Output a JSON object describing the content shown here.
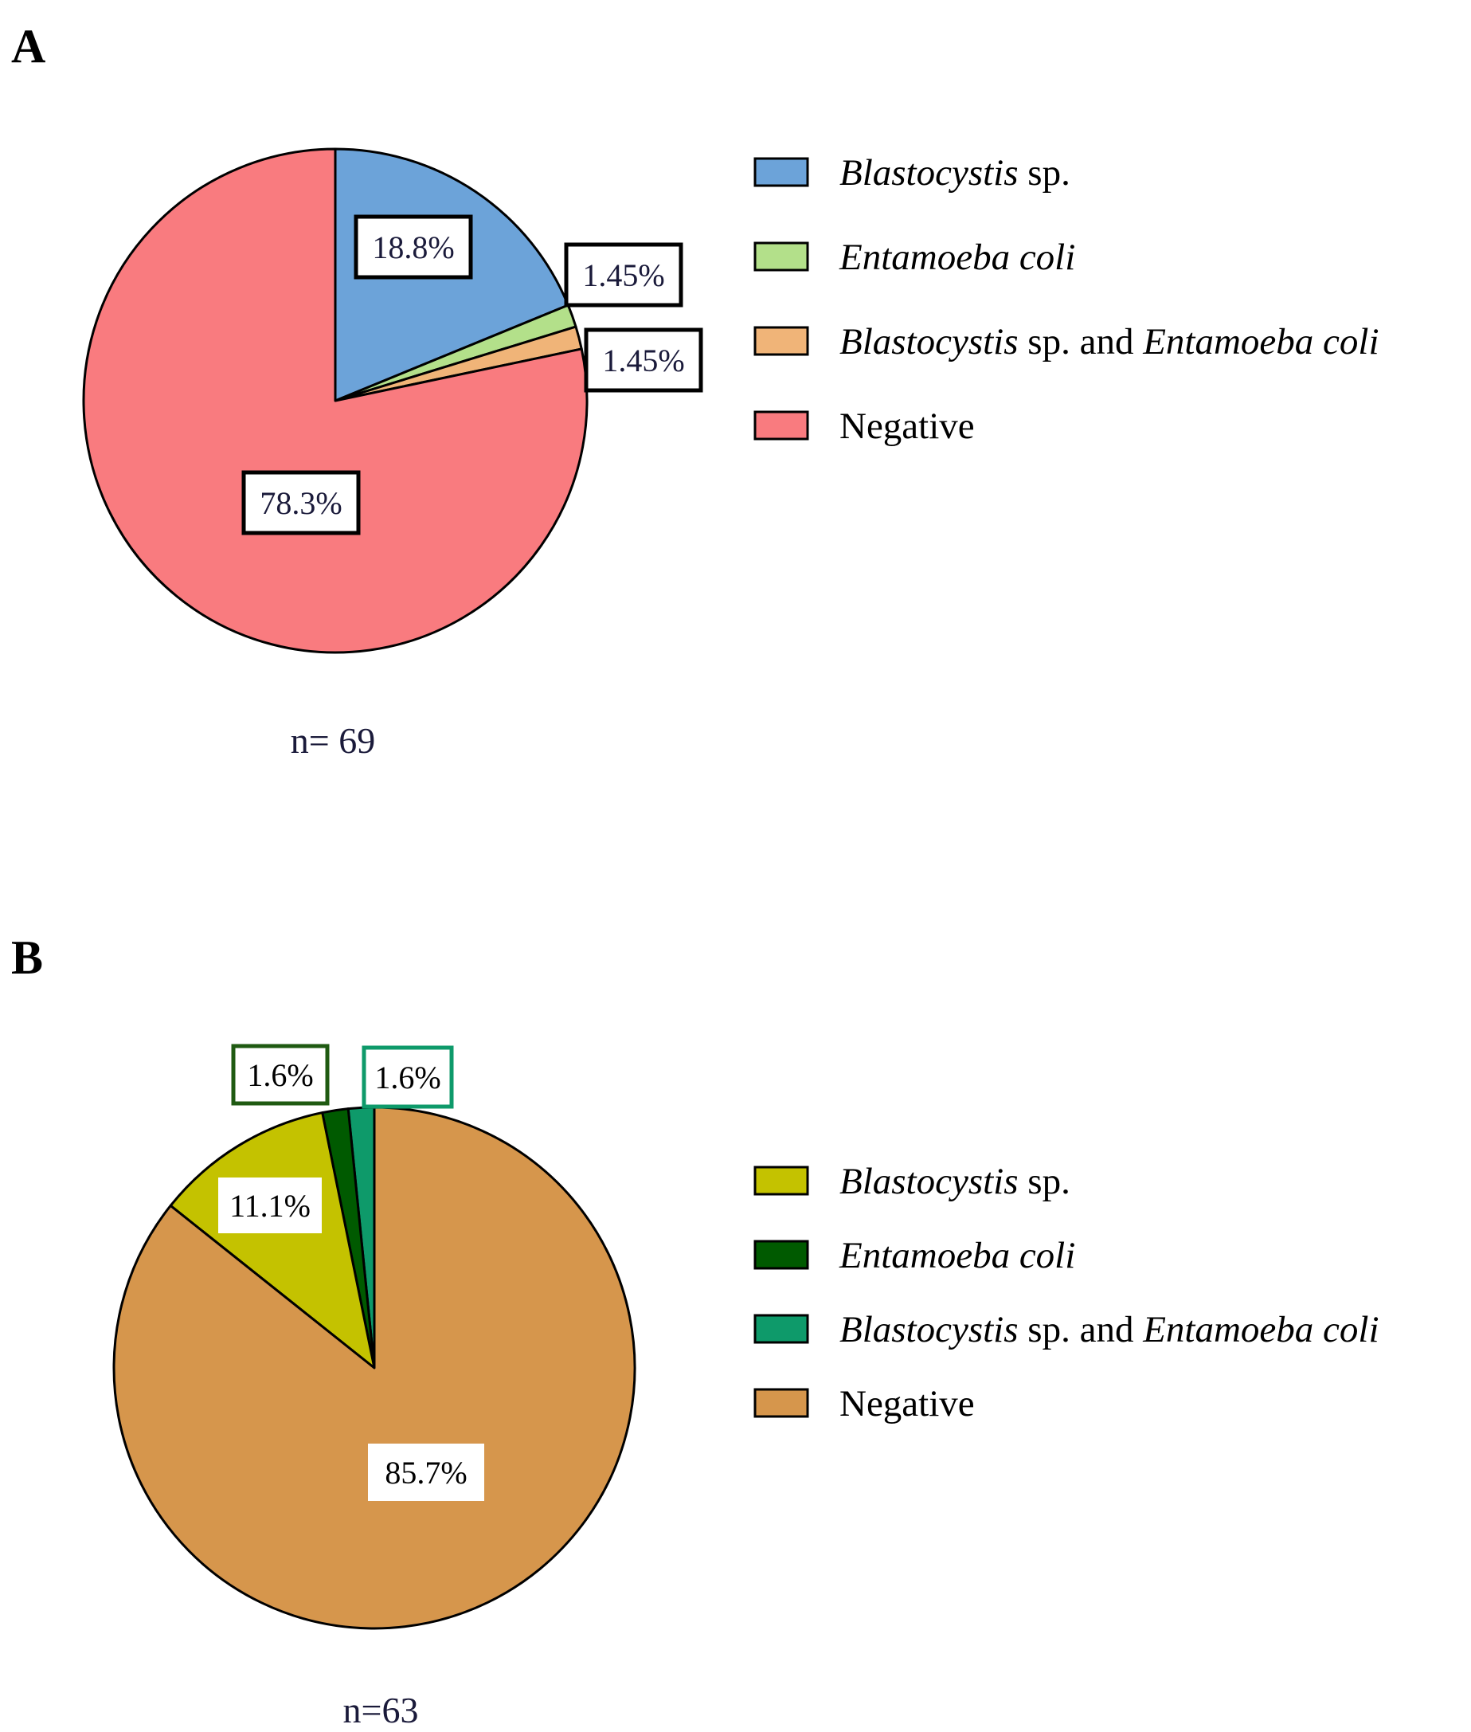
{
  "chart_data": [
    {
      "type": "pie",
      "panel": "A",
      "n_label": "n= 69",
      "start": "12 o'clock",
      "direction": "clockwise",
      "series": [
        {
          "name": "Blastocystis sp.",
          "value": 18.8,
          "label": "18.8%",
          "color": "#6ca3d9",
          "label_border": "#000000",
          "label_text": "#1a1a3a"
        },
        {
          "name": "Entamoeba coli",
          "value": 1.45,
          "label": "1.45%",
          "color": "#b3e08a",
          "label_border": "#000000",
          "label_text": "#1a1a3a"
        },
        {
          "name": "Blastocystis sp. and Entamoeba coli",
          "value": 1.45,
          "label": "1.45%",
          "color": "#f0b478",
          "label_border": "#000000",
          "label_text": "#1a1a3a"
        },
        {
          "name": "Negative",
          "value": 78.3,
          "label": "78.3%",
          "color": "#f97b7f",
          "label_border": "#000000",
          "label_text": "#1a1a3a"
        }
      ],
      "legend": [
        {
          "parts": [
            {
              "text": "Blastocystis",
              "italic": true
            },
            {
              "text": " sp.",
              "italic": false
            }
          ],
          "color": "#6ca3d9"
        },
        {
          "parts": [
            {
              "text": "Entamoeba coli",
              "italic": true
            }
          ],
          "color": "#b3e08a"
        },
        {
          "parts": [
            {
              "text": "Blastocystis",
              "italic": true
            },
            {
              "text": " sp. and ",
              "italic": false
            },
            {
              "text": "Entamoeba coli",
              "italic": true
            }
          ],
          "color": "#f0b478"
        },
        {
          "parts": [
            {
              "text": "Negative",
              "italic": false
            }
          ],
          "color": "#f97b7f"
        }
      ]
    },
    {
      "type": "pie",
      "panel": "B",
      "n_label": "n=63",
      "start": "12 o'clock",
      "direction": "counter-clockwise",
      "series": [
        {
          "name": "Blastocystis sp. and Entamoeba coli",
          "value": 1.6,
          "label": "1.6%",
          "color": "#0e9a6a",
          "label_border": "#0e9a6a",
          "label_text": "#000000"
        },
        {
          "name": "Entamoeba coli",
          "value": 1.6,
          "label": "1.6%",
          "color": "#005a00",
          "label_border": "#1f5a12",
          "label_text": "#000000"
        },
        {
          "name": "Blastocystis sp.",
          "value": 11.1,
          "label": "11.1%",
          "color": "#c4c200",
          "label_border": "none",
          "label_text": "#000000"
        },
        {
          "name": "Negative",
          "value": 85.7,
          "label": "85.7%",
          "color": "#d6964c",
          "label_border": "none",
          "label_text": "#000000"
        }
      ],
      "legend": [
        {
          "parts": [
            {
              "text": "Blastocystis",
              "italic": true
            },
            {
              "text": " sp.",
              "italic": false
            }
          ],
          "color": "#c4c200"
        },
        {
          "parts": [
            {
              "text": "Entamoeba coli",
              "italic": true
            }
          ],
          "color": "#005a00"
        },
        {
          "parts": [
            {
              "text": "Blastocystis",
              "italic": true
            },
            {
              "text": " sp. and ",
              "italic": false
            },
            {
              "text": "Entamoeba coli",
              "italic": true
            }
          ],
          "color": "#0e9a6a"
        },
        {
          "parts": [
            {
              "text": "Negative",
              "italic": false
            }
          ],
          "color": "#d6964c"
        }
      ]
    }
  ]
}
